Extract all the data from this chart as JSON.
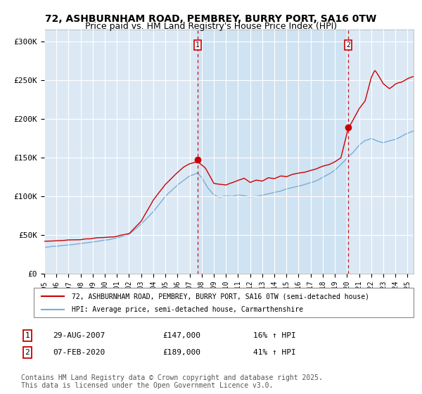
{
  "title_line1": "72, ASHBURNHAM ROAD, PEMBREY, BURRY PORT, SA16 0TW",
  "title_line2": "Price paid vs. HM Land Registry's House Price Index (HPI)",
  "title_fontsize": 10,
  "subtitle_fontsize": 9,
  "ylabel_ticks": [
    "£0",
    "£50K",
    "£100K",
    "£150K",
    "£200K",
    "£250K",
    "£300K"
  ],
  "ytick_values": [
    0,
    50000,
    100000,
    150000,
    200000,
    250000,
    300000
  ],
  "ylim": [
    0,
    315000
  ],
  "xlim_start": 1995.0,
  "xlim_end": 2025.5,
  "xtick_years": [
    1995,
    1996,
    1997,
    1998,
    1999,
    2000,
    2001,
    2002,
    2003,
    2004,
    2005,
    2006,
    2007,
    2008,
    2009,
    2010,
    2011,
    2012,
    2013,
    2014,
    2015,
    2016,
    2017,
    2018,
    2019,
    2020,
    2021,
    2022,
    2023,
    2024,
    2025
  ],
  "background_color": "#ffffff",
  "plot_bg_color": "#dce9f5",
  "grid_color": "#ffffff",
  "red_line_color": "#cc0000",
  "blue_line_color": "#7aadd4",
  "purchase1_date": 2007.66,
  "purchase1_price": 147000,
  "purchase2_date": 2020.1,
  "purchase2_price": 189000,
  "legend_red_label": "72, ASHBURNHAM ROAD, PEMBREY, BURRY PORT, SA16 0TW (semi-detached house)",
  "legend_blue_label": "HPI: Average price, semi-detached house, Carmarthenshire",
  "annotation1_date": "29-AUG-2007",
  "annotation1_price": "£147,000",
  "annotation1_hpi": "16% ↑ HPI",
  "annotation2_date": "07-FEB-2020",
  "annotation2_price": "£189,000",
  "annotation2_hpi": "41% ↑ HPI",
  "footer": "Contains HM Land Registry data © Crown copyright and database right 2025.\nThis data is licensed under the Open Government Licence v3.0.",
  "footer_fontsize": 7,
  "red_keypoints_x": [
    1995.0,
    1996.0,
    1997.0,
    1998.0,
    1999.0,
    2000.0,
    2001.0,
    2002.0,
    2003.0,
    2004.0,
    2005.0,
    2006.0,
    2006.5,
    2007.0,
    2007.66,
    2008.3,
    2009.0,
    2010.0,
    2011.0,
    2011.5,
    2012.0,
    2012.5,
    2013.0,
    2013.5,
    2014.0,
    2014.5,
    2015.0,
    2015.5,
    2016.0,
    2016.5,
    2017.0,
    2017.5,
    2018.0,
    2018.5,
    2019.0,
    2019.5,
    2020.1,
    2020.5,
    2021.0,
    2021.5,
    2022.0,
    2022.3,
    2022.6,
    2023.0,
    2023.5,
    2024.0,
    2024.5,
    2025.0,
    2025.5
  ],
  "red_keypoints_y": [
    42000,
    43000,
    44000,
    45500,
    47000,
    48000,
    50000,
    53000,
    68000,
    95000,
    115000,
    130000,
    138000,
    143000,
    147000,
    138000,
    118000,
    116000,
    122000,
    125000,
    120000,
    123000,
    122000,
    126000,
    125000,
    128000,
    127000,
    130000,
    132000,
    133000,
    135000,
    137000,
    140000,
    143000,
    147000,
    152000,
    189000,
    200000,
    215000,
    225000,
    255000,
    265000,
    258000,
    248000,
    242000,
    248000,
    250000,
    255000,
    258000
  ],
  "blue_keypoints_x": [
    1995.0,
    1996.0,
    1997.0,
    1998.0,
    1999.0,
    2000.0,
    2001.0,
    2002.0,
    2003.0,
    2004.0,
    2005.0,
    2006.0,
    2007.0,
    2007.66,
    2008.0,
    2008.5,
    2009.0,
    2009.5,
    2010.0,
    2010.5,
    2011.0,
    2011.5,
    2012.0,
    2012.5,
    2013.0,
    2013.5,
    2014.0,
    2014.5,
    2015.0,
    2015.5,
    2016.0,
    2016.5,
    2017.0,
    2017.5,
    2018.0,
    2018.5,
    2019.0,
    2019.5,
    2020.0,
    2020.5,
    2021.0,
    2021.5,
    2022.0,
    2022.5,
    2023.0,
    2023.5,
    2024.0,
    2024.5,
    2025.0,
    2025.5
  ],
  "blue_keypoints_y": [
    34000,
    35000,
    36000,
    38000,
    40000,
    42000,
    45000,
    50000,
    63000,
    80000,
    100000,
    115000,
    127000,
    131000,
    125000,
    112000,
    103000,
    100000,
    102000,
    101000,
    103000,
    102000,
    100000,
    101000,
    103000,
    105000,
    107000,
    109000,
    112000,
    114000,
    116000,
    118000,
    120000,
    123000,
    127000,
    131000,
    136000,
    143000,
    151000,
    158000,
    167000,
    173000,
    175000,
    172000,
    170000,
    172000,
    174000,
    178000,
    182000,
    185000
  ]
}
